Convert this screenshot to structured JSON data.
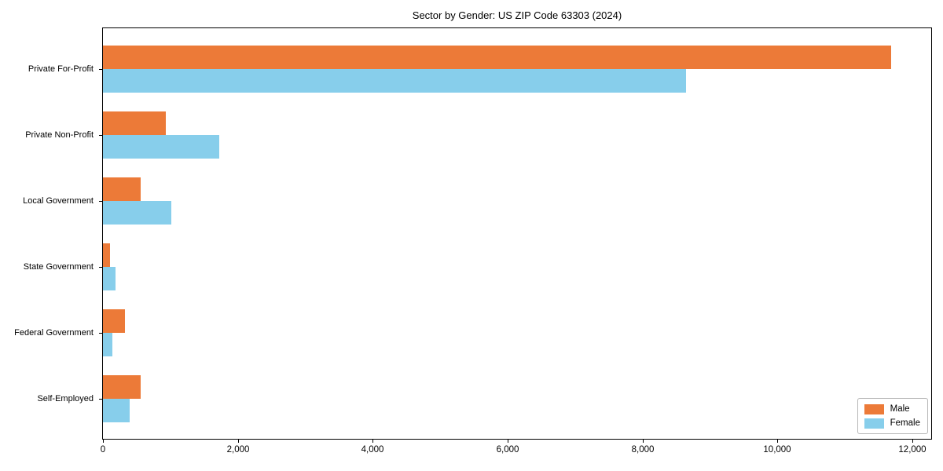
{
  "chart_data": {
    "type": "bar",
    "orientation": "horizontal",
    "title": "Sector by Gender: US ZIP Code 63303 (2024)",
    "categories": [
      "Private For-Profit",
      "Private Non-Profit",
      "Local Government",
      "State Government",
      "Federal Government",
      "Self-Employed"
    ],
    "series": [
      {
        "name": "Male",
        "color": "#EC7A38",
        "values": [
          11690,
          930,
          560,
          100,
          330,
          560
        ]
      },
      {
        "name": "Female",
        "color": "#87CEEB",
        "values": [
          8640,
          1730,
          1010,
          190,
          140,
          395
        ]
      }
    ],
    "xlim": [
      0,
      12280
    ],
    "x_ticks": [
      {
        "value": 0,
        "label": "0"
      },
      {
        "value": 2000,
        "label": "2,000"
      },
      {
        "value": 4000,
        "label": "4,000"
      },
      {
        "value": 6000,
        "label": "6,000"
      },
      {
        "value": 8000,
        "label": "8,000"
      },
      {
        "value": 10000,
        "label": "10,000"
      },
      {
        "value": 12000,
        "label": "12,000"
      }
    ],
    "xlabel": "",
    "ylabel": "",
    "grid": false,
    "legend_position": "lower right",
    "frame_color": "#000000",
    "background": "#ffffff"
  }
}
